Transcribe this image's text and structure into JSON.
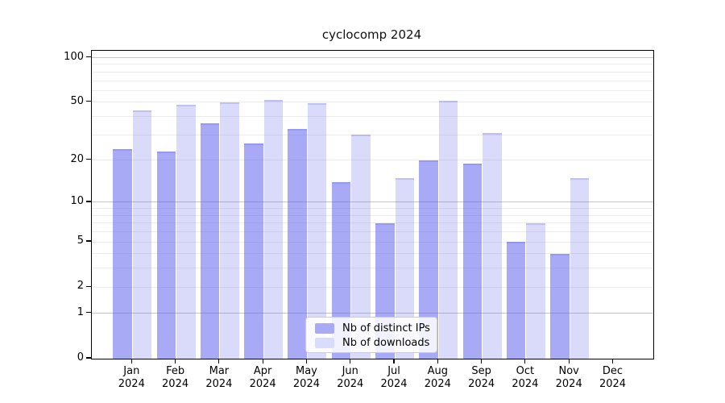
{
  "chart_data": {
    "type": "bar",
    "title": "cyclocomp 2024",
    "categories": [
      "Jan",
      "Feb",
      "Mar",
      "Apr",
      "May",
      "Jun",
      "Jul",
      "Aug",
      "Sep",
      "Oct",
      "Nov",
      "Dec"
    ],
    "category_year": "2024",
    "series": [
      {
        "name": "Nb of distinct IPs",
        "values": [
          24,
          23,
          36,
          26,
          33,
          14,
          7,
          20,
          19,
          5,
          4,
          0
        ],
        "color": "rgba(81,85,237,0.50)",
        "legend_color": "#a8aaf6"
      },
      {
        "name": "Nb of downloads",
        "values": [
          44,
          48,
          50,
          52,
          49,
          30,
          15,
          51,
          31,
          7,
          15,
          0
        ],
        "color": "rgba(81,85,237,0.21)",
        "legend_color": "#dadcfb"
      }
    ],
    "xlabel": "",
    "ylabel": "",
    "y_axis": {
      "scale": "log1p",
      "tick_values": [
        0,
        1,
        2,
        5,
        10,
        20,
        50,
        100
      ],
      "minor_grid_values": [
        2,
        3,
        4,
        5,
        6,
        7,
        8,
        9,
        20,
        30,
        40,
        50,
        60,
        70,
        80,
        90
      ],
      "major_grid_values": [
        1,
        10,
        100
      ],
      "ylim": [
        0,
        110
      ]
    },
    "grid": "horizontal",
    "legend_position": "lower center"
  },
  "colors": {
    "bar_base": "#5155ed",
    "minor_grid": "#ececec",
    "major_grid": "#c6c6c6",
    "axis": "#000000",
    "background": "#ffffff"
  }
}
